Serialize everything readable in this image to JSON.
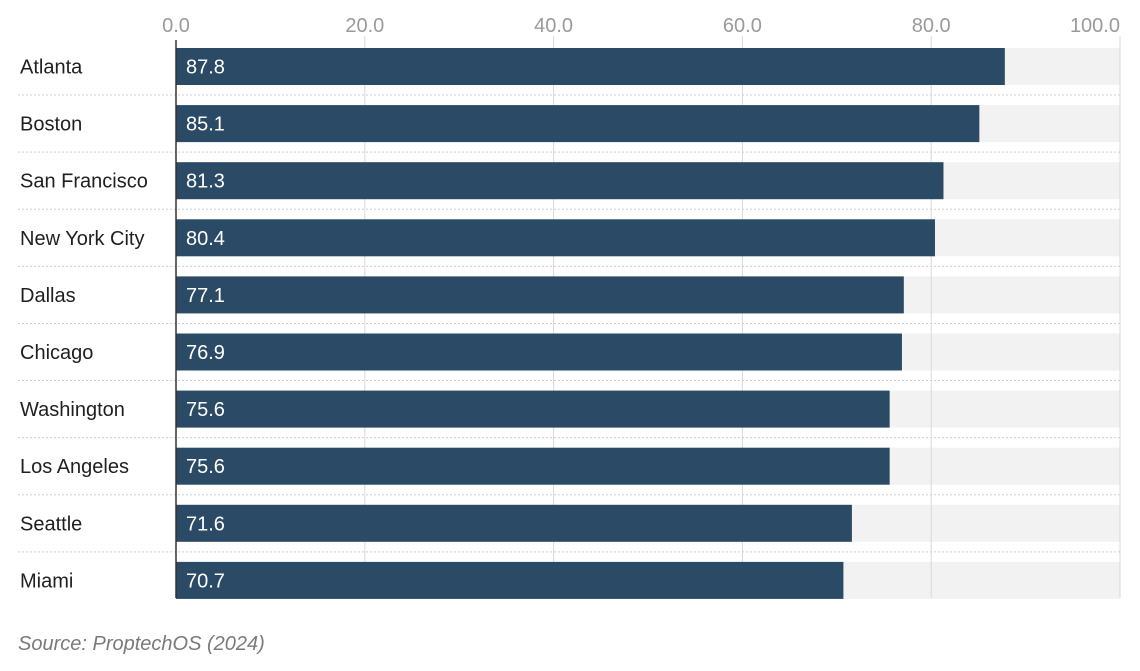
{
  "chart_data": {
    "type": "bar",
    "orientation": "horizontal",
    "categories": [
      "Atlanta",
      "Boston",
      "San Francisco",
      "New York City",
      "Dallas",
      "Chicago",
      "Washington",
      "Los Angeles",
      "Seattle",
      "Miami"
    ],
    "values": [
      87.8,
      85.1,
      81.3,
      80.4,
      77.1,
      76.9,
      75.6,
      75.6,
      71.6,
      70.7
    ],
    "value_labels": [
      "87.8",
      "85.1",
      "81.3",
      "80.4",
      "77.1",
      "76.9",
      "75.6",
      "75.6",
      "71.6",
      "70.7"
    ],
    "xlim": [
      0,
      100
    ],
    "x_ticks": [
      0,
      20,
      40,
      60,
      80,
      100
    ],
    "x_tick_labels": [
      "0.0",
      "20.0",
      "40.0",
      "60.0",
      "80.0",
      "100.0"
    ],
    "x_axis_position": "top",
    "grid": true,
    "bar_color": "#2b4a65",
    "track_color": "#f2f2f2",
    "grid_color": "#d8d8d8",
    "source": "Source: ProptechOS (2024)"
  }
}
